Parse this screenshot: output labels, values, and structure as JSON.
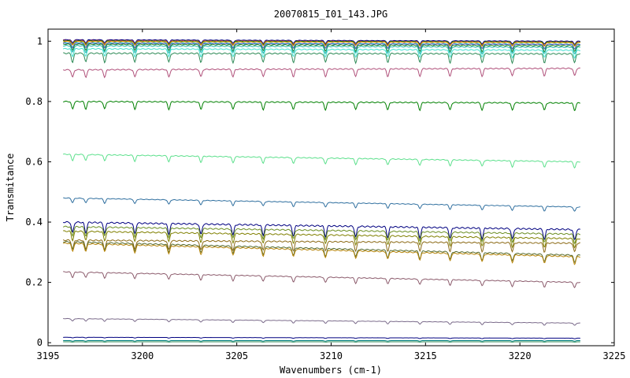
{
  "chart_data": {
    "type": "line",
    "title": "20070815_I01_143.JPG",
    "xlabel": "Wavenumbers (cm-1)",
    "ylabel": "Transmitance",
    "xlim": [
      3195,
      3225
    ],
    "ylim": [
      -0.01,
      1.04
    ],
    "x_range": [
      3195.8,
      3223.2
    ],
    "xticks": [
      "3195",
      "3200",
      "3205",
      "3210",
      "3215",
      "3220",
      "3225"
    ],
    "yticks": [
      "0",
      "0.2",
      "0.4",
      "0.6",
      "0.8",
      "1"
    ],
    "grid": false,
    "legend": "none",
    "dip_positions": [
      3196.3,
      3197.0,
      3198.0,
      3199.6,
      3201.4,
      3203.1,
      3204.8,
      3206.4,
      3208.0,
      3209.7,
      3211.3,
      3213.0,
      3214.7,
      3216.3,
      3218.0,
      3219.6,
      3221.3,
      3222.9
    ],
    "series": [
      {
        "color": "#000080",
        "y_start": 1.005,
        "y_end": 1.0,
        "dip": 0.01
      },
      {
        "color": "#b03060",
        "y_start": 1.003,
        "y_end": 0.998,
        "dip": 0.012
      },
      {
        "color": "#008000",
        "y_start": 1.001,
        "y_end": 0.997,
        "dip": 0.012
      },
      {
        "color": "#ff8c00",
        "y_start": 0.999,
        "y_end": 0.995,
        "dip": 0.012
      },
      {
        "color": "#00bfbf",
        "y_start": 0.995,
        "y_end": 0.99,
        "dip": 0.015
      },
      {
        "color": "#6a5acd",
        "y_start": 0.993,
        "y_end": 0.989,
        "dip": 0.015
      },
      {
        "color": "#228b22",
        "y_start": 0.99,
        "y_end": 0.985,
        "dip": 0.02
      },
      {
        "color": "#20b2aa",
        "y_start": 0.985,
        "y_end": 0.98,
        "dip": 0.022
      },
      {
        "color": "#40e0d0",
        "y_start": 0.975,
        "y_end": 0.97,
        "dip": 0.025
      },
      {
        "color": "#2e8b57",
        "y_start": 0.96,
        "y_end": 0.958,
        "dip": 0.03
      },
      {
        "color": "#b0507a",
        "y_start": 0.905,
        "y_end": 0.91,
        "dip": 0.025
      },
      {
        "color": "#008000",
        "y_start": 0.8,
        "y_end": 0.795,
        "dip": 0.025
      },
      {
        "color": "#5ce08c",
        "y_start": 0.625,
        "y_end": 0.6,
        "dip": 0.02
      },
      {
        "color": "#2f6f9f",
        "y_start": 0.48,
        "y_end": 0.45,
        "dip": 0.015
      },
      {
        "color": "#000080",
        "y_start": 0.4,
        "y_end": 0.375,
        "dip": 0.035
      },
      {
        "color": "#6b8e23",
        "y_start": 0.385,
        "y_end": 0.36,
        "dip": 0.03
      },
      {
        "color": "#808000",
        "y_start": 0.37,
        "y_end": 0.345,
        "dip": 0.03
      },
      {
        "color": "#8b6914",
        "y_start": 0.34,
        "y_end": 0.33,
        "dip": 0.03
      },
      {
        "color": "#556b2f",
        "y_start": 0.335,
        "y_end": 0.29,
        "dip": 0.025
      },
      {
        "color": "#b8860b",
        "y_start": 0.33,
        "y_end": 0.285,
        "dip": 0.025
      },
      {
        "color": "#8b5a6b",
        "y_start": 0.235,
        "y_end": 0.2,
        "dip": 0.018
      },
      {
        "color": "#7a6a8a",
        "y_start": 0.08,
        "y_end": 0.065,
        "dip": 0.008
      },
      {
        "color": "#000080",
        "y_start": 0.018,
        "y_end": 0.015,
        "dip": 0.002
      },
      {
        "color": "#008080",
        "y_start": 0.007,
        "y_end": 0.007,
        "dip": 0.002
      },
      {
        "color": "#2e8b57",
        "y_start": 0.003,
        "y_end": 0.003,
        "dip": 0.001
      }
    ]
  }
}
